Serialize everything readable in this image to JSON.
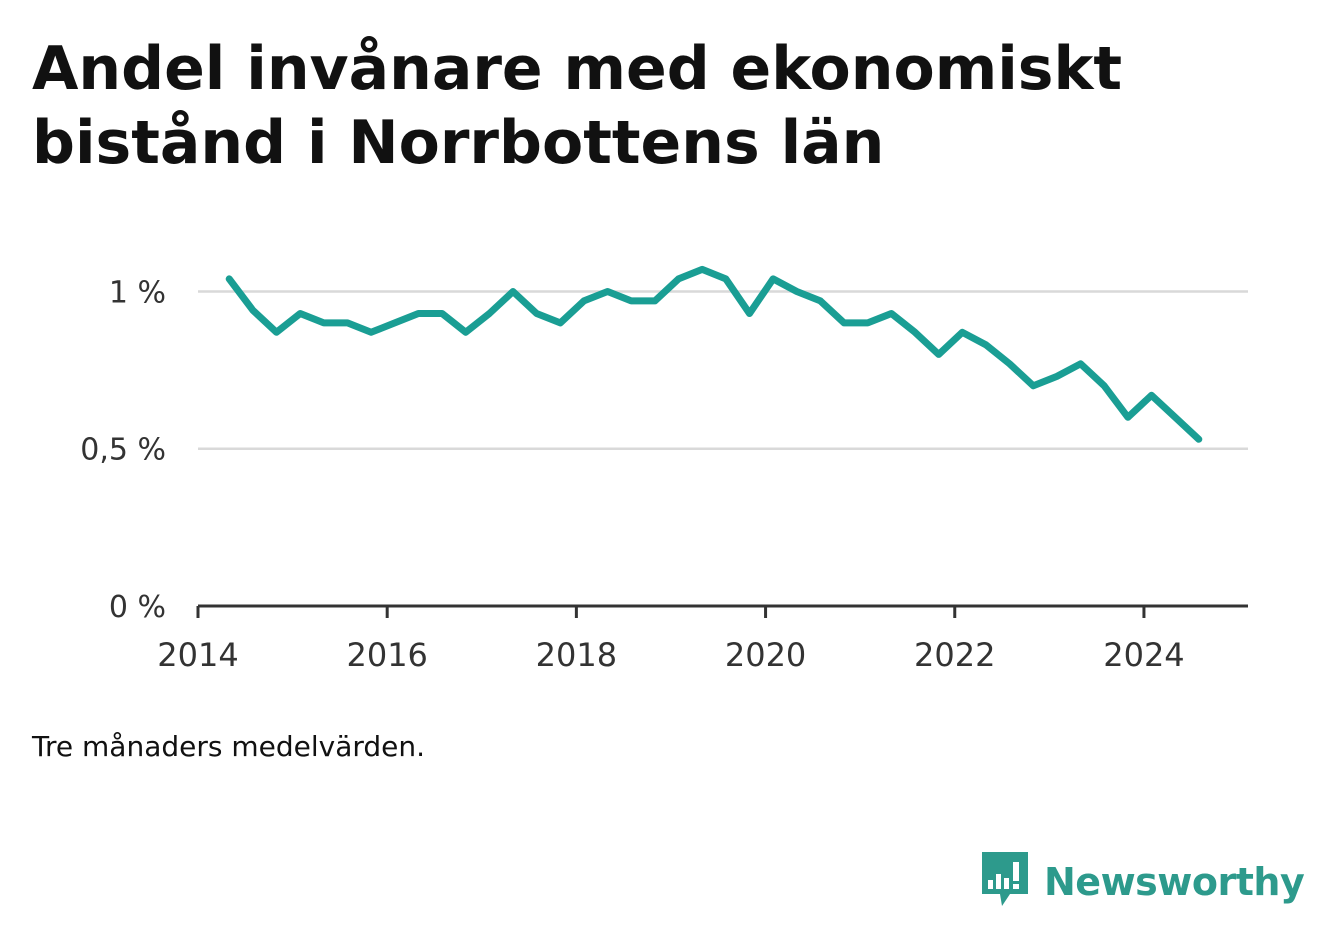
{
  "title": "Andel invånare med ekonomiskt bistånd i Norrbottens län",
  "note": "Tre månaders medelvärden.",
  "brand": {
    "name": "Newsworthy",
    "color": "#2d9a8c",
    "icon": "newsworthy-logo-icon"
  },
  "colors": {
    "line": "#1a9e94",
    "grid": "#d9d9d9",
    "axis": "#333333",
    "text": "#333333"
  },
  "chart_data": {
    "type": "line",
    "title": "Andel invånare med ekonomiskt bistånd i Norrbottens län",
    "xlabel": "",
    "ylabel": "",
    "xlim": [
      2014,
      2025.1
    ],
    "ylim": [
      0,
      1.1
    ],
    "x_ticks": [
      2014,
      2016,
      2018,
      2020,
      2022,
      2024
    ],
    "x_tick_labels": [
      "2014",
      "2016",
      "2018",
      "2020",
      "2022",
      "2024"
    ],
    "y_ticks": [
      0,
      0.5,
      1
    ],
    "y_tick_labels": [
      "0 %",
      "0,5 %",
      "1 %"
    ],
    "grid": true,
    "series": [
      {
        "x": [
          2014.33,
          2014.58,
          2014.83,
          2015.08,
          2015.33,
          2015.58,
          2015.83,
          2016.08,
          2016.33,
          2016.58,
          2016.83,
          2017.08,
          2017.33,
          2017.58,
          2017.83,
          2018.08,
          2018.33,
          2018.58,
          2018.83,
          2019.08,
          2019.33,
          2019.58,
          2019.83,
          2020.08,
          2020.33,
          2020.58,
          2020.83,
          2021.08,
          2021.33,
          2021.58,
          2021.83,
          2022.08,
          2022.33,
          2022.58,
          2022.83,
          2023.08,
          2023.33,
          2023.58,
          2023.83,
          2024.08,
          2024.33,
          2024.58
        ],
        "y": [
          1.04,
          0.94,
          0.87,
          0.93,
          0.9,
          0.9,
          0.87,
          0.9,
          0.93,
          0.93,
          0.87,
          0.93,
          1.0,
          0.93,
          0.9,
          0.97,
          1.0,
          0.97,
          0.97,
          1.04,
          1.07,
          1.04,
          0.93,
          1.04,
          1.0,
          0.97,
          0.9,
          0.9,
          0.93,
          0.87,
          0.8,
          0.87,
          0.83,
          0.77,
          0.7,
          0.73,
          0.77,
          0.7,
          0.6,
          0.67,
          0.6,
          0.53
        ]
      }
    ]
  }
}
